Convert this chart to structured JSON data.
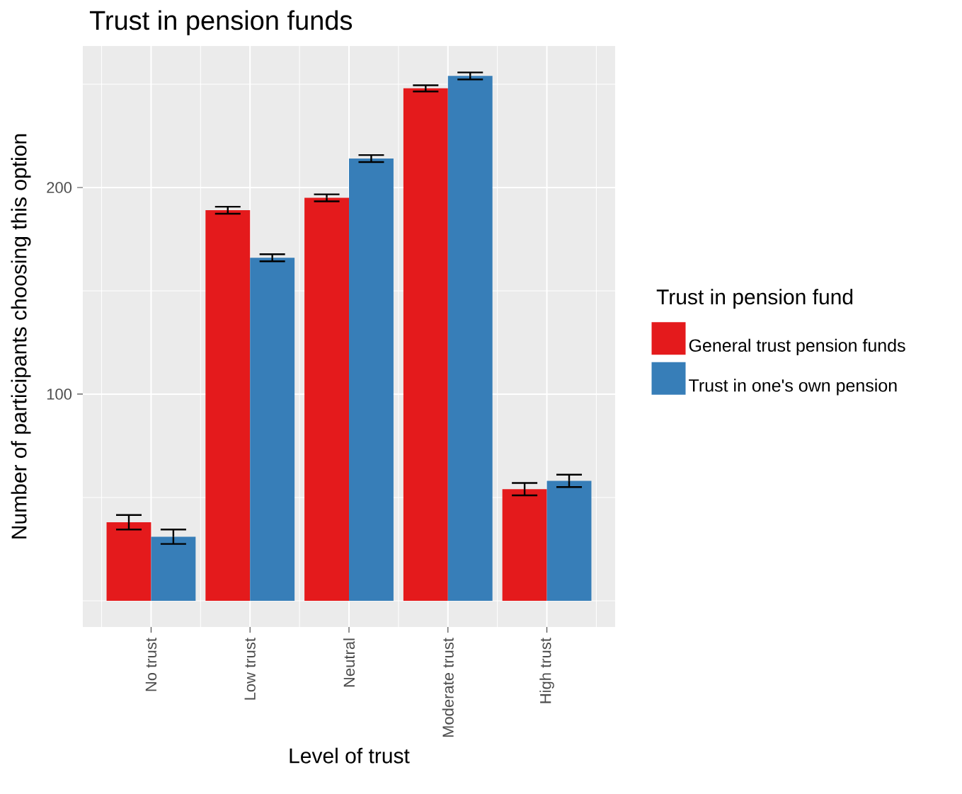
{
  "chart_data": {
    "type": "bar",
    "title": "Trust in pension funds",
    "xlabel": "Level of trust",
    "ylabel": "Number of participants choosing this option",
    "legend_title": "Trust in pension fund",
    "categories": [
      "No trust",
      "Low trust",
      "Neutral",
      "Moderate trust",
      "High trust"
    ],
    "series": [
      {
        "name": "General trust pension funds",
        "color": "#e41a1c",
        "values": [
          38,
          189,
          195,
          248,
          54
        ],
        "errors": [
          3.5,
          1.7,
          1.7,
          1.5,
          3
        ]
      },
      {
        "name": "Trust in one's own pension",
        "color": "#377eb8",
        "values": [
          31,
          166,
          214,
          254,
          58
        ],
        "errors": [
          3.5,
          1.7,
          1.7,
          1.7,
          3
        ]
      }
    ],
    "ylim": [
      -12.7,
      268.5
    ],
    "yticks": [
      {
        "value": 0,
        "label": null
      },
      {
        "value": 50,
        "label": null
      },
      100,
      {
        "value": 150,
        "label": null
      },
      200,
      {
        "value": 250,
        "label": null
      }
    ],
    "grid": true,
    "legend": "right"
  }
}
